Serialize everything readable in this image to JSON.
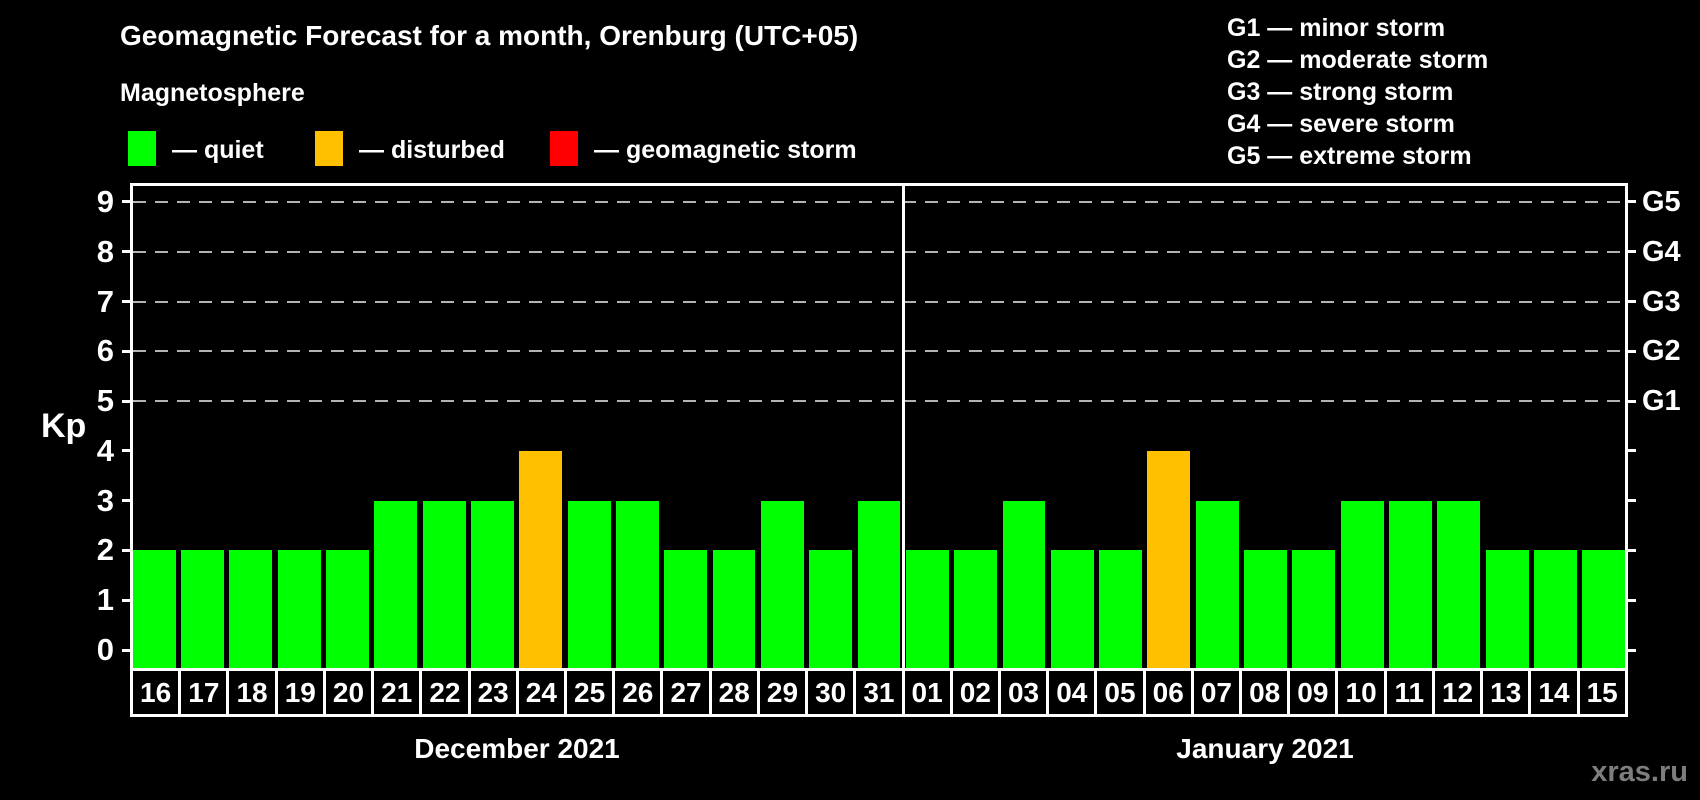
{
  "header": {
    "title": "Geomagnetic Forecast for a month, Orenburg (UTC+05)",
    "subtitle": "Magnetosphere"
  },
  "legend": {
    "items": [
      {
        "name": "quiet",
        "swatch_color": "#00ff00",
        "label": "— quiet"
      },
      {
        "name": "disturbed",
        "swatch_color": "#ffc000",
        "label": "— disturbed"
      },
      {
        "name": "storm",
        "swatch_color": "#ff0000",
        "label": "— geomagnetic storm"
      }
    ]
  },
  "storm_scale": {
    "items": [
      "G1 — minor storm",
      "G2 — moderate storm",
      "G3 — strong storm",
      "G4 — severe storm",
      "G5 — extreme storm"
    ]
  },
  "watermark": "xras.ru",
  "chart_data": {
    "type": "bar",
    "ylabel": "Kp",
    "ylim": [
      0,
      9
    ],
    "yticks": [
      0,
      1,
      2,
      3,
      4,
      5,
      6,
      7,
      8,
      9
    ],
    "gridlines_at": [
      5,
      6,
      7,
      8,
      9
    ],
    "grid": "dashed-horizontal",
    "legend_position": "top",
    "right_axis": [
      {
        "label": "G1",
        "level": 5
      },
      {
        "label": "G2",
        "level": 6
      },
      {
        "label": "G3",
        "level": 7
      },
      {
        "label": "G4",
        "level": 8
      },
      {
        "label": "G5",
        "level": 9
      }
    ],
    "status_colors": {
      "quiet": "#00ff00",
      "disturbed": "#ffc000",
      "storm": "#ff0000"
    },
    "months": [
      {
        "label": "December 2021",
        "days": [
          {
            "day": "16",
            "kp": 2,
            "status": "quiet"
          },
          {
            "day": "17",
            "kp": 2,
            "status": "quiet"
          },
          {
            "day": "18",
            "kp": 2,
            "status": "quiet"
          },
          {
            "day": "19",
            "kp": 2,
            "status": "quiet"
          },
          {
            "day": "20",
            "kp": 2,
            "status": "quiet"
          },
          {
            "day": "21",
            "kp": 3,
            "status": "quiet"
          },
          {
            "day": "22",
            "kp": 3,
            "status": "quiet"
          },
          {
            "day": "23",
            "kp": 3,
            "status": "quiet"
          },
          {
            "day": "24",
            "kp": 4,
            "status": "disturbed"
          },
          {
            "day": "25",
            "kp": 3,
            "status": "quiet"
          },
          {
            "day": "26",
            "kp": 3,
            "status": "quiet"
          },
          {
            "day": "27",
            "kp": 2,
            "status": "quiet"
          },
          {
            "day": "28",
            "kp": 2,
            "status": "quiet"
          },
          {
            "day": "29",
            "kp": 3,
            "status": "quiet"
          },
          {
            "day": "30",
            "kp": 2,
            "status": "quiet"
          },
          {
            "day": "31",
            "kp": 3,
            "status": "quiet"
          }
        ]
      },
      {
        "label": "January 2021",
        "days": [
          {
            "day": "01",
            "kp": 2,
            "status": "quiet"
          },
          {
            "day": "02",
            "kp": 2,
            "status": "quiet"
          },
          {
            "day": "03",
            "kp": 3,
            "status": "quiet"
          },
          {
            "day": "04",
            "kp": 2,
            "status": "quiet"
          },
          {
            "day": "05",
            "kp": 2,
            "status": "quiet"
          },
          {
            "day": "06",
            "kp": 4,
            "status": "disturbed"
          },
          {
            "day": "07",
            "kp": 3,
            "status": "quiet"
          },
          {
            "day": "08",
            "kp": 2,
            "status": "quiet"
          },
          {
            "day": "09",
            "kp": 2,
            "status": "quiet"
          },
          {
            "day": "10",
            "kp": 3,
            "status": "quiet"
          },
          {
            "day": "11",
            "kp": 3,
            "status": "quiet"
          },
          {
            "day": "12",
            "kp": 3,
            "status": "quiet"
          },
          {
            "day": "13",
            "kp": 2,
            "status": "quiet"
          },
          {
            "day": "14",
            "kp": 2,
            "status": "quiet"
          },
          {
            "day": "15",
            "kp": 2,
            "status": "quiet"
          }
        ]
      }
    ]
  }
}
